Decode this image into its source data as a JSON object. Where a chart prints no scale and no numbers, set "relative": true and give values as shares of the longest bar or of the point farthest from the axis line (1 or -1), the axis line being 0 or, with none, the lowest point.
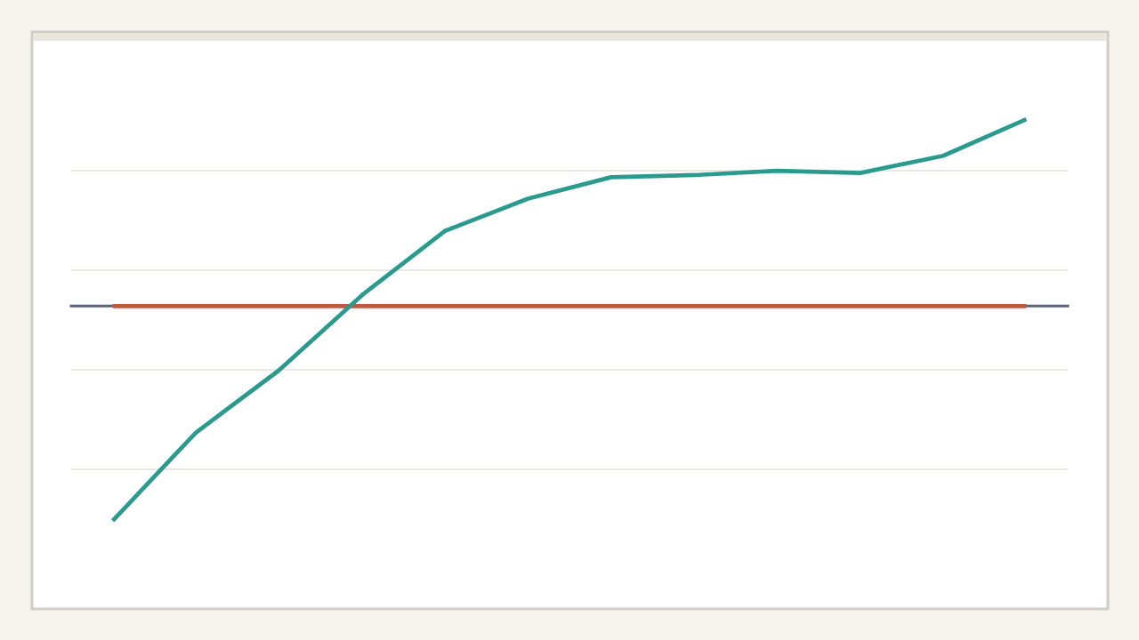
{
  "chart_data": {
    "type": "line",
    "relative": true,
    "categories": [
      null,
      null,
      null,
      null,
      null,
      null,
      null,
      null,
      null,
      null,
      null,
      null
    ],
    "series": [
      {
        "color": "#2a9a8e",
        "values": [
          -1,
          -0.59,
          -0.3,
          0.05,
          0.35,
          0.5,
          0.6,
          0.61,
          0.63,
          0.62,
          0.7,
          0.87
        ]
      },
      {
        "color": "#c0573e",
        "values": [
          0,
          0,
          0,
          0,
          0,
          0,
          0,
          0,
          0,
          0,
          0,
          0
        ]
      }
    ],
    "grid": "y"
  }
}
